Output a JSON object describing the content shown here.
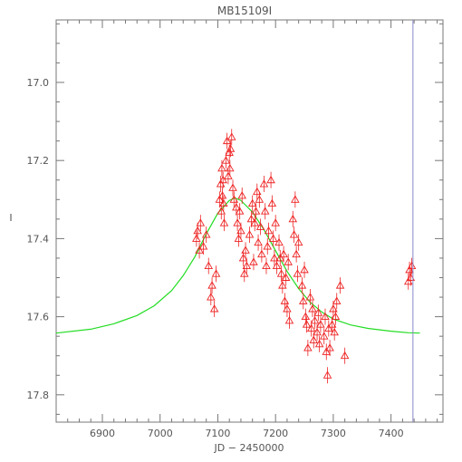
{
  "chart_data": {
    "type": "scatter",
    "title": "MB15109I",
    "xlabel": "JD − 2450000",
    "ylabel": "I",
    "xlim": [
      6820,
      7490
    ],
    "ylim": [
      17.87,
      16.84
    ],
    "y_inverted": true,
    "grid": false,
    "x_ticks": [
      6900,
      7000,
      7100,
      7200,
      7300,
      7400
    ],
    "y_ticks": [
      17.0,
      17.2,
      17.4,
      17.6,
      17.8
    ],
    "x_tick_labels": [
      "6900",
      "7000",
      "7100",
      "7200",
      "7300",
      "7400"
    ],
    "y_tick_labels": [
      "17.0",
      "17.2",
      "17.4",
      "17.6",
      "17.8"
    ],
    "vertical_line": {
      "x": 7438,
      "color": "#8888cc"
    },
    "model": {
      "color": "#22dd22",
      "x": [
        6820,
        6880,
        6920,
        6960,
        6990,
        7020,
        7040,
        7060,
        7080,
        7100,
        7120,
        7130,
        7140,
        7160,
        7180,
        7200,
        7220,
        7240,
        7260,
        7280,
        7300,
        7330,
        7360,
        7400,
        7430,
        7450
      ],
      "y": [
        17.642,
        17.632,
        17.618,
        17.597,
        17.572,
        17.533,
        17.495,
        17.447,
        17.388,
        17.335,
        17.302,
        17.296,
        17.302,
        17.332,
        17.377,
        17.431,
        17.484,
        17.528,
        17.563,
        17.588,
        17.606,
        17.621,
        17.63,
        17.637,
        17.641,
        17.642
      ]
    },
    "series": [
      {
        "color": "#ee2222",
        "marker": "triangle-open",
        "points": [
          [
            7063,
            17.4
          ],
          [
            7065,
            17.38
          ],
          [
            7068,
            17.43
          ],
          [
            7070,
            17.36
          ],
          [
            7075,
            17.42
          ],
          [
            7080,
            17.39
          ],
          [
            7084,
            17.47
          ],
          [
            7088,
            17.55
          ],
          [
            7090,
            17.52
          ],
          [
            7094,
            17.58
          ],
          [
            7097,
            17.49
          ],
          [
            7103,
            17.3
          ],
          [
            7105,
            17.26
          ],
          [
            7106,
            17.33
          ],
          [
            7107,
            17.22
          ],
          [
            7108,
            17.29
          ],
          [
            7109,
            17.25
          ],
          [
            7110,
            17.31
          ],
          [
            7111,
            17.36
          ],
          [
            7114,
            17.2
          ],
          [
            7116,
            17.15
          ],
          [
            7118,
            17.24
          ],
          [
            7120,
            17.18
          ],
          [
            7121,
            17.22
          ],
          [
            7122,
            17.17
          ],
          [
            7124,
            17.14
          ],
          [
            7126,
            17.27
          ],
          [
            7128,
            17.3
          ],
          [
            7132,
            17.32
          ],
          [
            7134,
            17.36
          ],
          [
            7136,
            17.4
          ],
          [
            7138,
            17.33
          ],
          [
            7140,
            17.38
          ],
          [
            7142,
            17.29
          ],
          [
            7144,
            17.45
          ],
          [
            7146,
            17.49
          ],
          [
            7148,
            17.43
          ],
          [
            7150,
            17.47
          ],
          [
            7155,
            17.39
          ],
          [
            7158,
            17.35
          ],
          [
            7160,
            17.31
          ],
          [
            7162,
            17.46
          ],
          [
            7164,
            17.36
          ],
          [
            7166,
            17.33
          ],
          [
            7168,
            17.28
          ],
          [
            7170,
            17.41
          ],
          [
            7172,
            17.3
          ],
          [
            7174,
            17.37
          ],
          [
            7176,
            17.44
          ],
          [
            7180,
            17.26
          ],
          [
            7182,
            17.33
          ],
          [
            7184,
            17.47
          ],
          [
            7186,
            17.42
          ],
          [
            7188,
            17.38
          ],
          [
            7192,
            17.25
          ],
          [
            7194,
            17.31
          ],
          [
            7196,
            17.4
          ],
          [
            7198,
            17.45
          ],
          [
            7200,
            17.36
          ],
          [
            7202,
            17.47
          ],
          [
            7206,
            17.41
          ],
          [
            7208,
            17.45
          ],
          [
            7210,
            17.49
          ],
          [
            7212,
            17.52
          ],
          [
            7214,
            17.44
          ],
          [
            7216,
            17.56
          ],
          [
            7218,
            17.5
          ],
          [
            7220,
            17.58
          ],
          [
            7222,
            17.46
          ],
          [
            7224,
            17.61
          ],
          [
            7230,
            17.35
          ],
          [
            7232,
            17.39
          ],
          [
            7234,
            17.3
          ],
          [
            7236,
            17.44
          ],
          [
            7238,
            17.49
          ],
          [
            7240,
            17.41
          ],
          [
            7246,
            17.52
          ],
          [
            7248,
            17.56
          ],
          [
            7250,
            17.48
          ],
          [
            7252,
            17.6
          ],
          [
            7254,
            17.62
          ],
          [
            7256,
            17.68
          ],
          [
            7260,
            17.55
          ],
          [
            7262,
            17.63
          ],
          [
            7264,
            17.58
          ],
          [
            7266,
            17.66
          ],
          [
            7268,
            17.61
          ],
          [
            7272,
            17.64
          ],
          [
            7274,
            17.59
          ],
          [
            7276,
            17.67
          ],
          [
            7278,
            17.62
          ],
          [
            7284,
            17.65
          ],
          [
            7286,
            17.6
          ],
          [
            7288,
            17.69
          ],
          [
            7290,
            17.75
          ],
          [
            7292,
            17.63
          ],
          [
            7294,
            17.68
          ],
          [
            7298,
            17.62
          ],
          [
            7300,
            17.58
          ],
          [
            7302,
            17.64
          ],
          [
            7304,
            17.6
          ],
          [
            7306,
            17.56
          ],
          [
            7312,
            17.52
          ],
          [
            7320,
            17.7
          ],
          [
            7430,
            17.51
          ],
          [
            7432,
            17.48
          ],
          [
            7434,
            17.5
          ],
          [
            7436,
            17.47
          ]
        ]
      }
    ]
  }
}
